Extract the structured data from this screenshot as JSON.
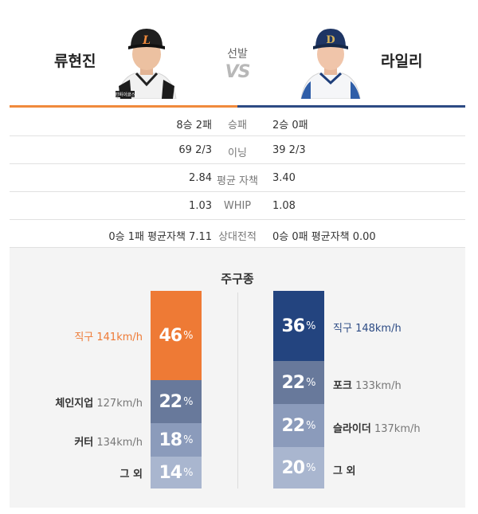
{
  "header": {
    "left_name": "류현진",
    "right_name": "라일리",
    "vs_label": "선발",
    "vs_text": "VS",
    "left_cap_letter": "L",
    "right_cap_letter": "D",
    "left_badge": "한화이글스"
  },
  "colors": {
    "left_accent": "#ee7a35",
    "right_accent": "#23447f"
  },
  "stats": [
    {
      "label": "승패",
      "left": "8승 2패",
      "right": "2승 0패"
    },
    {
      "label": "이닝",
      "left": "69 2/3",
      "right": "39 2/3"
    },
    {
      "label": "평균 자책",
      "left": "2.84",
      "right": "3.40"
    },
    {
      "label": "WHIP",
      "left": "1.03",
      "right": "1.08"
    },
    {
      "label": "상대전적",
      "left": "0승 1패 평균자책 7.11",
      "right": "0승 0패 평균자책 0.00"
    }
  ],
  "pitch_title": "주구종",
  "left_pitches": [
    {
      "name": "직구",
      "speed": "141km/h",
      "pct": "46",
      "sign": "%",
      "color": "#ee7a35"
    },
    {
      "name": "체인지업",
      "speed": "127km/h",
      "pct": "22",
      "sign": "%",
      "color": "#68799b"
    },
    {
      "name": "커터",
      "speed": "134km/h",
      "pct": "18",
      "sign": "%",
      "color": "#8b9bbb"
    },
    {
      "name": "그 외",
      "speed": "",
      "pct": "14",
      "sign": "%",
      "color": "#a9b6cf"
    }
  ],
  "right_pitches": [
    {
      "name": "직구",
      "speed": "148km/h",
      "pct": "36",
      "sign": "%",
      "color": "#23447f"
    },
    {
      "name": "포크",
      "speed": "133km/h",
      "pct": "22",
      "sign": "%",
      "color": "#68799b"
    },
    {
      "name": "슬라이더",
      "speed": "137km/h",
      "pct": "22",
      "sign": "%",
      "color": "#8b9bbb"
    },
    {
      "name": "그 외",
      "speed": "",
      "pct": "20",
      "sign": "%",
      "color": "#a9b6cf"
    }
  ]
}
